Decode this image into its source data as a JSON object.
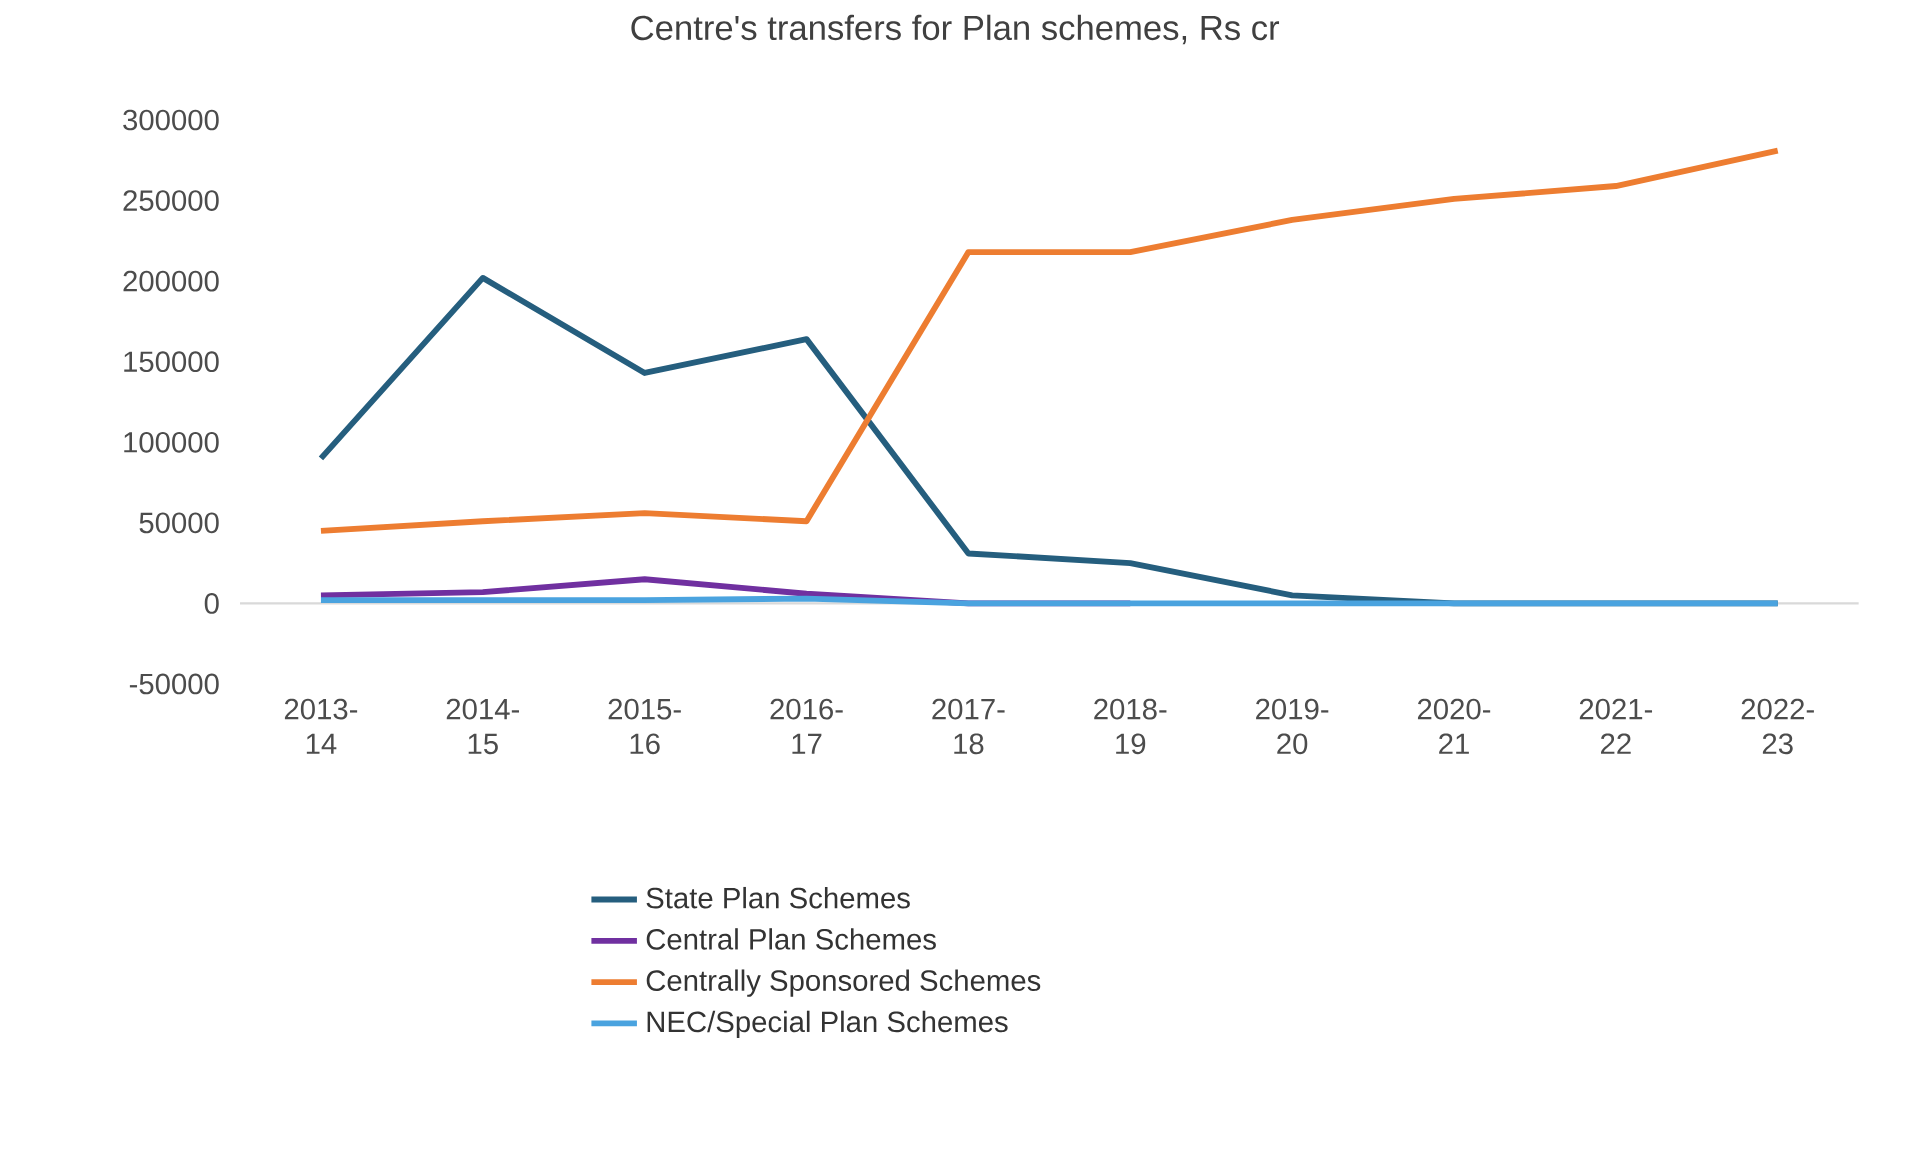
{
  "chart_data": {
    "type": "line",
    "title": "Centre's transfers for Plan schemes, Rs cr",
    "categories": [
      "2013-14",
      "2014-15",
      "2015-16",
      "2016-17",
      "2017-18",
      "2018-19",
      "2019-20",
      "2020-21",
      "2021-22",
      "2022-23"
    ],
    "series": [
      {
        "name": "State Plan Schemes",
        "color": "#255e7e",
        "values": [
          90000,
          202000,
          143000,
          164000,
          31000,
          25000,
          5000,
          0,
          0,
          0
        ]
      },
      {
        "name": "Central Plan Schemes",
        "color": "#7030a0",
        "values": [
          5000,
          7000,
          15000,
          6000,
          0,
          0,
          null,
          null,
          null,
          null
        ]
      },
      {
        "name": "Centrally Sponsored Schemes",
        "color": "#ed7d31",
        "values": [
          45000,
          51000,
          56000,
          51000,
          218000,
          218000,
          238000,
          251000,
          259000,
          281000
        ]
      },
      {
        "name": "NEC/Special Plan Schemes",
        "color": "#4aa3df",
        "values": [
          2000,
          2000,
          2000,
          3000,
          0,
          0,
          0,
          0,
          0,
          0
        ]
      }
    ],
    "ylim": [
      -50000,
      300000
    ],
    "yticks": [
      -50000,
      0,
      50000,
      100000,
      150000,
      200000,
      250000,
      300000
    ],
    "legend": "bottom"
  }
}
